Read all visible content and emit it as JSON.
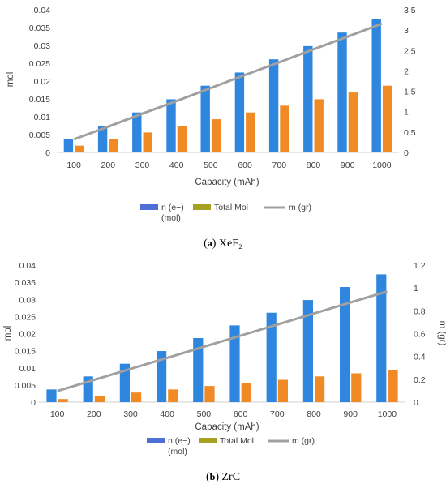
{
  "colors": {
    "n_series": "#2E86DE",
    "total_series": "#F08A24",
    "line_series": "#A0A0A0",
    "legend_n": "#4F6FD6",
    "legend_total": "#A8A020",
    "legend_line": "#A0A0A0"
  },
  "chart_data": [
    {
      "type": "bar",
      "panel_letter": "a",
      "caption": "XeF₂",
      "xlabel": "Capacity (mAh)",
      "ylabel": "mol",
      "y2label": "",
      "categories": [
        "100",
        "200",
        "300",
        "400",
        "500",
        "600",
        "700",
        "800",
        "900",
        "1000"
      ],
      "ylim": [
        0,
        0.04
      ],
      "yticks": [
        "0",
        "0.005",
        "0.01",
        "0.015",
        "0.02",
        "0.025",
        "0.03",
        "0.035",
        "0.04"
      ],
      "y2lim": [
        0,
        3.5
      ],
      "y2ticks": [
        "0",
        "0.5",
        "1",
        "1.5",
        "2",
        "2.5",
        "3",
        "3.5"
      ],
      "legend_position": "bottom",
      "series": [
        {
          "name": "n (e−)",
          "name_line2": "(mol)",
          "kind": "bar",
          "axis": "left",
          "values": [
            0.0037,
            0.0075,
            0.0112,
            0.0149,
            0.0187,
            0.0224,
            0.0261,
            0.0298,
            0.0336,
            0.0373
          ]
        },
        {
          "name": "Total Mol",
          "kind": "bar",
          "axis": "left",
          "values": [
            0.0019,
            0.0037,
            0.0056,
            0.0075,
            0.0093,
            0.0112,
            0.0131,
            0.0149,
            0.0168,
            0.0187
          ]
        },
        {
          "name": "m (gr)",
          "kind": "line",
          "axis": "right",
          "values": [
            0.32,
            0.63,
            0.95,
            1.26,
            1.58,
            1.9,
            2.21,
            2.53,
            2.84,
            3.16
          ]
        }
      ]
    },
    {
      "type": "bar",
      "panel_letter": "b",
      "caption": "ZrC",
      "xlabel": "Capacity (mAh)",
      "ylabel": "mol",
      "y2label": "m (gr)",
      "categories": [
        "100",
        "200",
        "300",
        "400",
        "500",
        "600",
        "700",
        "800",
        "900",
        "1000"
      ],
      "ylim": [
        0,
        0.04
      ],
      "yticks": [
        "0",
        "0.005",
        "0.01",
        "0.015",
        "0.02",
        "0.025",
        "0.03",
        "0.035",
        "0.04"
      ],
      "y2lim": [
        0,
        1.2
      ],
      "y2ticks": [
        "0",
        "0.2",
        "0.4",
        "0.6",
        "0.8",
        "1",
        "1.2"
      ],
      "legend_position": "bottom",
      "series": [
        {
          "name": "n (e−)",
          "name_line2": "(mol)",
          "kind": "bar",
          "axis": "left",
          "values": [
            0.0037,
            0.0075,
            0.0112,
            0.0149,
            0.0187,
            0.0224,
            0.0261,
            0.0298,
            0.0336,
            0.0373
          ]
        },
        {
          "name": "Total Mol",
          "kind": "bar",
          "axis": "left",
          "values": [
            0.0009,
            0.0019,
            0.0028,
            0.0037,
            0.0047,
            0.0056,
            0.0065,
            0.0075,
            0.0084,
            0.0093
          ]
        },
        {
          "name": "m (gr)",
          "kind": "line",
          "axis": "right",
          "values": [
            0.097,
            0.194,
            0.291,
            0.388,
            0.485,
            0.582,
            0.679,
            0.776,
            0.873,
            0.97
          ]
        }
      ]
    }
  ]
}
